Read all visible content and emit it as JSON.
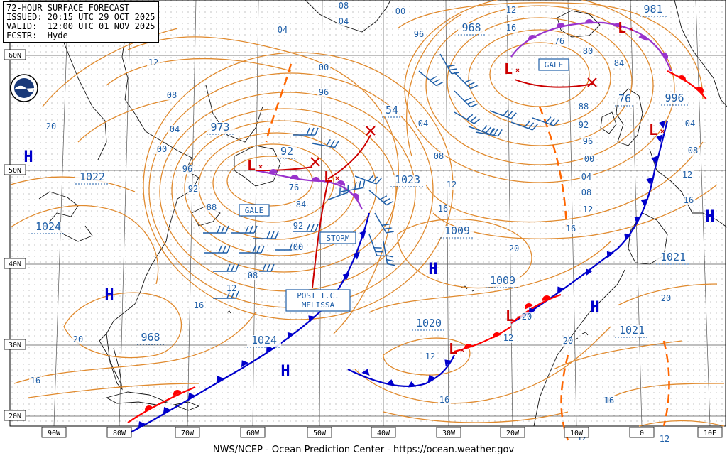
{
  "header": {
    "line1": "72-HOUR SURFACE FORECAST",
    "line2": "ISSUED: 20:15 UTC 29 OCT 2025",
    "line3": "VALID:  12:00 UTC 01 NOV 2025",
    "line4": "FCSTR:  Hyde"
  },
  "footer": "NWS/NCEP - Ocean Prediction Center - https://ocean.weather.gov",
  "colors": {
    "isobar": "#e08a2e",
    "grid": "#555555",
    "pressure_label": "#1f5fa8",
    "high": "#0000cc",
    "low": "#cc0000",
    "cold_front": "#0000cc",
    "warm_front": "#ff0000",
    "occluded_front": "#9933cc",
    "trough": "#ff6600",
    "wind_barb": "#1f5fa8",
    "coast": "#111111"
  },
  "latitude_labels": [
    "60N",
    "50N",
    "40N",
    "30N",
    "20N"
  ],
  "longitude_labels": [
    "90W",
    "80W",
    "70W",
    "60W",
    "50W",
    "40W",
    "30W",
    "20W",
    "10W",
    "0",
    "10E"
  ],
  "highs": [
    {
      "label": "H"
    },
    {
      "label": "H"
    },
    {
      "label": "H"
    },
    {
      "label": "H"
    },
    {
      "label": "H"
    },
    {
      "label": "H"
    }
  ],
  "lows": [
    {
      "label": "L"
    },
    {
      "label": "L"
    },
    {
      "label": "L"
    },
    {
      "label": "L"
    },
    {
      "label": "L"
    },
    {
      "label": "L"
    },
    {
      "label": "L"
    },
    {
      "label": "L"
    }
  ],
  "boxed_pressures": [
    "973",
    "92",
    "1022",
    "1024",
    "968",
    "54",
    "1023",
    "1009",
    "1009",
    "1020",
    "1024",
    "968",
    "981",
    "76",
    "996",
    "1021",
    "1021"
  ],
  "warning_boxes": [
    "GALE",
    "STORM",
    "GALE"
  ],
  "post_tc_label": {
    "line1": "POST T.C.",
    "line2": "MELISSA"
  },
  "isobar_labels": [
    "04",
    "12",
    "08",
    "20",
    "04",
    "00",
    "96",
    "92",
    "88",
    "76",
    "84",
    "92",
    "00",
    "08",
    "12",
    "16",
    "20",
    "16",
    "00",
    "96",
    "04",
    "08",
    "12",
    "16",
    "20",
    "96",
    "00",
    "04",
    "08",
    "12",
    "16",
    "20",
    "12",
    "16",
    "12",
    "12",
    "16",
    "76",
    "80",
    "84",
    "88",
    "92",
    "96",
    "00",
    "04",
    "08",
    "12",
    "16",
    "04",
    "08",
    "12",
    "16",
    "20",
    "20",
    "16",
    "12"
  ]
}
